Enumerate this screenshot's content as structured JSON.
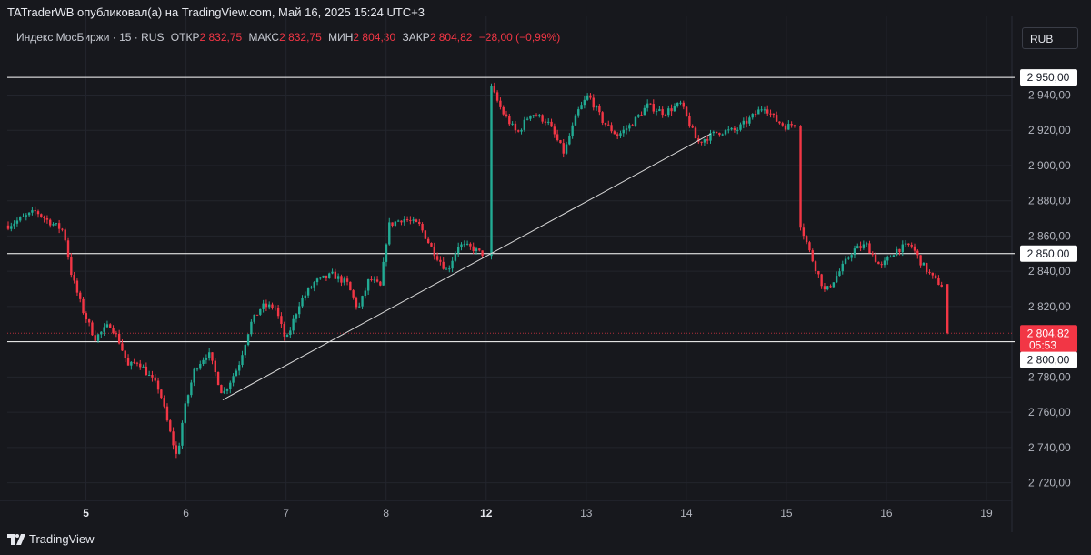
{
  "header": {
    "publish_text": "TATraderWB опубликовал(а) на TradingView.com, Май 16, 2025 15:24 UTC+3"
  },
  "legend": {
    "symbol": "Индекс МосБиржи · 15 · RUS",
    "open_label": "ОТКР",
    "open_value": "2 832,75",
    "high_label": "МАКС",
    "high_value": "2 832,75",
    "low_label": "МИН",
    "low_value": "2 804,30",
    "close_label": "ЗАКР",
    "close_value": "2 804,82",
    "change": "−28,00 (−0,99%)"
  },
  "currency_button": "RUB",
  "footer": {
    "brand": "TradingView"
  },
  "colors": {
    "background": "#17181d",
    "up": "#22ab94",
    "down": "#f23645",
    "line": "#ffffff",
    "grid": "#23252d"
  },
  "chart_data": {
    "type": "candlestick",
    "y_range": [
      2711,
      2964
    ],
    "y_ticks": [
      {
        "value": 2720,
        "label": "2 720,00"
      },
      {
        "value": 2740,
        "label": "2 740,00"
      },
      {
        "value": 2760,
        "label": "2 760,00"
      },
      {
        "value": 2780,
        "label": "2 780,00"
      },
      {
        "value": 2820,
        "label": "2 820,00"
      },
      {
        "value": 2840,
        "label": "2 840,00"
      },
      {
        "value": 2860,
        "label": "2 860,00"
      },
      {
        "value": 2880,
        "label": "2 880,00"
      },
      {
        "value": 2900,
        "label": "2 900,00"
      },
      {
        "value": 2920,
        "label": "2 920,00"
      },
      {
        "value": 2940,
        "label": "2 940,00"
      }
    ],
    "x_ticks": [
      {
        "label": "5",
        "pos": 0.07,
        "bold": true
      },
      {
        "label": "6",
        "pos": 0.16,
        "bold": false
      },
      {
        "label": "7",
        "pos": 0.25,
        "bold": false
      },
      {
        "label": "8",
        "pos": 0.34,
        "bold": false
      },
      {
        "label": "12",
        "pos": 0.43,
        "bold": true
      },
      {
        "label": "13",
        "pos": 0.52,
        "bold": false
      },
      {
        "label": "14",
        "pos": 0.61,
        "bold": false
      },
      {
        "label": "15",
        "pos": 0.7,
        "bold": false
      },
      {
        "label": "16",
        "pos": 0.79,
        "bold": false
      },
      {
        "label": "19",
        "pos": 0.88,
        "bold": false
      }
    ],
    "horizontal_levels": [
      {
        "value": 2950,
        "label": "2 950,00"
      },
      {
        "value": 2850,
        "label": "2 850,00"
      },
      {
        "value": 2800,
        "label": "2 800,00"
      }
    ],
    "current_price": {
      "value": 2804.82,
      "label": "2 804,82",
      "countdown": "05:53"
    },
    "trendline": {
      "from": {
        "pos": 0.193,
        "value": 2767
      },
      "to": {
        "pos": 0.632,
        "value": 2918
      }
    },
    "price_path": [
      {
        "pos": 0.0,
        "value": 2866
      },
      {
        "pos": 0.025,
        "value": 2874
      },
      {
        "pos": 0.035,
        "value": 2869
      },
      {
        "pos": 0.05,
        "value": 2863
      },
      {
        "pos": 0.057,
        "value": 2838
      },
      {
        "pos": 0.067,
        "value": 2818
      },
      {
        "pos": 0.078,
        "value": 2802
      },
      {
        "pos": 0.092,
        "value": 2810
      },
      {
        "pos": 0.1,
        "value": 2800
      },
      {
        "pos": 0.108,
        "value": 2786
      },
      {
        "pos": 0.117,
        "value": 2789
      },
      {
        "pos": 0.125,
        "value": 2782
      },
      {
        "pos": 0.136,
        "value": 2773
      },
      {
        "pos": 0.145,
        "value": 2750
      },
      {
        "pos": 0.152,
        "value": 2734
      },
      {
        "pos": 0.158,
        "value": 2760
      },
      {
        "pos": 0.168,
        "value": 2785
      },
      {
        "pos": 0.18,
        "value": 2794
      },
      {
        "pos": 0.193,
        "value": 2770
      },
      {
        "pos": 0.207,
        "value": 2786
      },
      {
        "pos": 0.218,
        "value": 2810
      },
      {
        "pos": 0.228,
        "value": 2820
      },
      {
        "pos": 0.24,
        "value": 2820
      },
      {
        "pos": 0.25,
        "value": 2800
      },
      {
        "pos": 0.262,
        "value": 2822
      },
      {
        "pos": 0.276,
        "value": 2834
      },
      {
        "pos": 0.292,
        "value": 2838
      },
      {
        "pos": 0.305,
        "value": 2833
      },
      {
        "pos": 0.315,
        "value": 2818
      },
      {
        "pos": 0.325,
        "value": 2836
      },
      {
        "pos": 0.335,
        "value": 2831
      },
      {
        "pos": 0.342,
        "value": 2866
      },
      {
        "pos": 0.355,
        "value": 2870
      },
      {
        "pos": 0.37,
        "value": 2866
      },
      {
        "pos": 0.382,
        "value": 2852
      },
      {
        "pos": 0.395,
        "value": 2840
      },
      {
        "pos": 0.405,
        "value": 2855
      },
      {
        "pos": 0.418,
        "value": 2853
      },
      {
        "pos": 0.425,
        "value": 2850
      },
      {
        "pos": 0.433,
        "value": 2946
      },
      {
        "pos": 0.445,
        "value": 2930
      },
      {
        "pos": 0.458,
        "value": 2918
      },
      {
        "pos": 0.47,
        "value": 2930
      },
      {
        "pos": 0.485,
        "value": 2925
      },
      {
        "pos": 0.5,
        "value": 2907
      },
      {
        "pos": 0.512,
        "value": 2930
      },
      {
        "pos": 0.522,
        "value": 2940
      },
      {
        "pos": 0.535,
        "value": 2925
      },
      {
        "pos": 0.548,
        "value": 2917
      },
      {
        "pos": 0.56,
        "value": 2923
      },
      {
        "pos": 0.575,
        "value": 2934
      },
      {
        "pos": 0.59,
        "value": 2930
      },
      {
        "pos": 0.605,
        "value": 2935
      },
      {
        "pos": 0.62,
        "value": 2913
      },
      {
        "pos": 0.638,
        "value": 2919
      },
      {
        "pos": 0.655,
        "value": 2920
      },
      {
        "pos": 0.67,
        "value": 2928
      },
      {
        "pos": 0.68,
        "value": 2934
      },
      {
        "pos": 0.69,
        "value": 2926
      },
      {
        "pos": 0.7,
        "value": 2922
      },
      {
        "pos": 0.708,
        "value": 2924
      },
      {
        "pos": 0.711,
        "value": 2870
      },
      {
        "pos": 0.722,
        "value": 2849
      },
      {
        "pos": 0.735,
        "value": 2828
      },
      {
        "pos": 0.748,
        "value": 2840
      },
      {
        "pos": 0.76,
        "value": 2852
      },
      {
        "pos": 0.772,
        "value": 2855
      },
      {
        "pos": 0.785,
        "value": 2842
      },
      {
        "pos": 0.798,
        "value": 2852
      },
      {
        "pos": 0.812,
        "value": 2855
      },
      {
        "pos": 0.822,
        "value": 2844
      },
      {
        "pos": 0.832,
        "value": 2836
      },
      {
        "pos": 0.84,
        "value": 2832
      },
      {
        "pos": 0.845,
        "value": 2805
      }
    ]
  }
}
